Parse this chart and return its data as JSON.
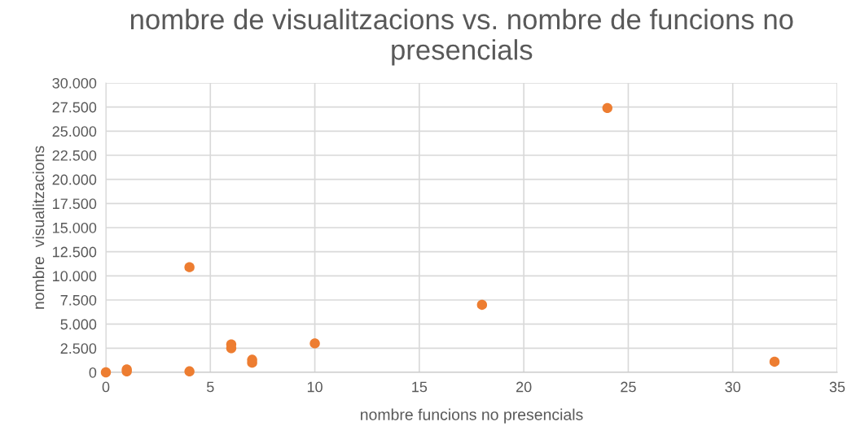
{
  "chart_data": {
    "type": "scatter",
    "title": "nombre de visualitzacions vs. nombre de funcions no presencials",
    "xlabel": "nombre funcions no presencials",
    "ylabel": "nombre  visualitzacions",
    "x": [
      0,
      1,
      1,
      4,
      4,
      6,
      6,
      7,
      7,
      10,
      18,
      24,
      32
    ],
    "series": [
      {
        "color": "#ed7d31",
        "values": [
          0,
          100,
          300,
          100,
          10900,
          2500,
          2900,
          1000,
          1300,
          3000,
          7000,
          27400,
          1100
        ]
      }
    ],
    "xlim": [
      0,
      35
    ],
    "xticks": [
      0,
      5,
      10,
      15,
      20,
      25,
      30,
      35
    ],
    "ylim": [
      0,
      30000
    ],
    "yticks": [
      {
        "value": 0,
        "label": "0"
      },
      {
        "value": 2500,
        "label": "2.500"
      },
      {
        "value": 5000,
        "label": "5.000"
      },
      {
        "value": 7500,
        "label": "7.500"
      },
      {
        "value": 10000,
        "label": "10.000"
      },
      {
        "value": 12500,
        "label": "12.500"
      },
      {
        "value": 15000,
        "label": "15.000"
      },
      {
        "value": 17500,
        "label": "17.500"
      },
      {
        "value": 20000,
        "label": "20.000"
      },
      {
        "value": 22500,
        "label": "22.500"
      },
      {
        "value": 25000,
        "label": "25.000"
      },
      {
        "value": 27500,
        "label": "27.500"
      },
      {
        "value": 30000,
        "label": "30.000"
      }
    ],
    "grid": true,
    "marker": "circle"
  }
}
